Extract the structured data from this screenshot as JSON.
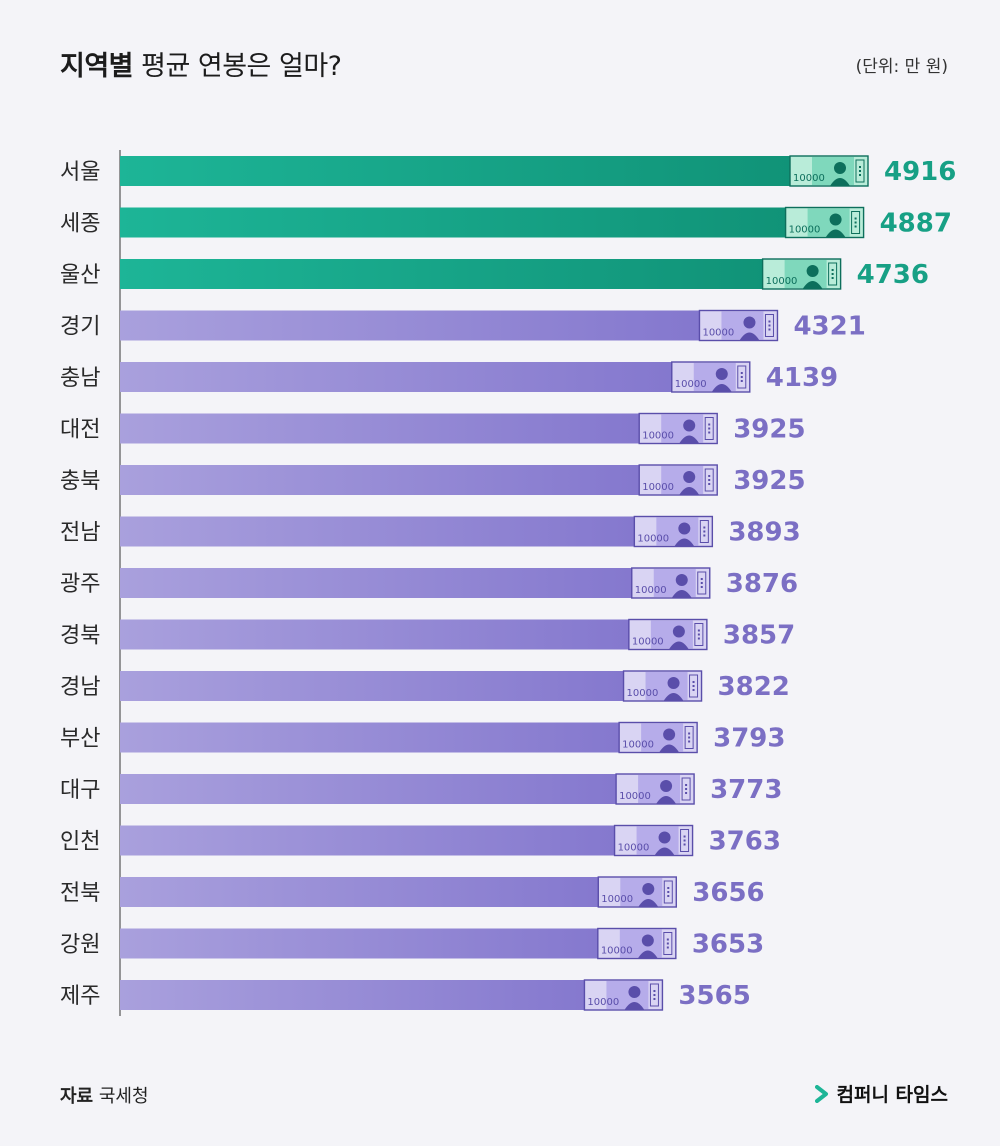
{
  "header": {
    "title_bold": "지역별",
    "title_rest": " 평균 연봉은 얼마?",
    "unit": "(단위: 만 원)"
  },
  "footer": {
    "source_label": "자료",
    "source_value": " 국세청",
    "brand": "컴퍼니 타임스"
  },
  "colors": {
    "highlight": "#1db597",
    "highlight_dark": "#0f8f74",
    "normal": "#a9a0dd",
    "normal_dark": "#7f72cc",
    "highlight_text": "#17a085",
    "normal_text": "#7b6fc4",
    "brand_accent": "#1db597"
  },
  "banknote": {
    "denomination": "10000"
  },
  "chart_data": {
    "type": "bar",
    "orientation": "horizontal",
    "title": "지역별 평균 연봉은 얼마?",
    "unit": "(단위: 만 원)",
    "categories": [
      "서울",
      "세종",
      "울산",
      "경기",
      "충남",
      "대전",
      "충북",
      "전남",
      "광주",
      "경북",
      "경남",
      "부산",
      "대구",
      "인천",
      "전북",
      "강원",
      "제주"
    ],
    "values": [
      4916,
      4887,
      4736,
      4321,
      4139,
      3925,
      3925,
      3893,
      3876,
      3857,
      3822,
      3793,
      3773,
      3763,
      3656,
      3653,
      3565
    ],
    "highlighted_top": 3,
    "xlim": [
      0,
      4916
    ],
    "grid": false
  }
}
